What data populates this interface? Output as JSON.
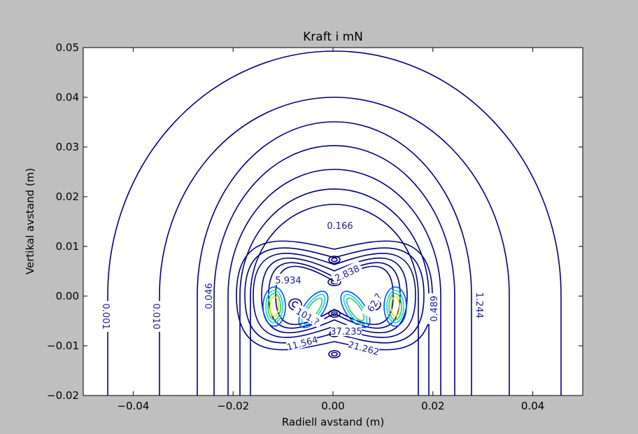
{
  "colors": {
    "figure_background": "#bfbfbf",
    "plot_background": "#ffffff",
    "outer_contour": "#000080",
    "mid_contour": "#0050ff",
    "inner_cyan": "#00d8ff",
    "inner_green": "#33cc55",
    "inner_yellow": "#e0e000"
  },
  "chart_data": {
    "type": "contour",
    "title": "Kraft i mN",
    "xlabel": "Radiell avstand (m)",
    "ylabel": "Vertikal avstand (m)",
    "xlim": [
      -0.05,
      0.05
    ],
    "ylim": [
      -0.02,
      0.05
    ],
    "x_ticks": [
      -0.04,
      -0.02,
      0.0,
      0.02,
      0.04
    ],
    "x_tick_labels": [
      "−0.04",
      "−0.02",
      "0.00",
      "0.02",
      "0.04"
    ],
    "y_ticks": [
      -0.02,
      -0.01,
      0.0,
      0.01,
      0.02,
      0.03,
      0.04,
      0.05
    ],
    "y_tick_labels": [
      "−0.02",
      "−0.01",
      "0.00",
      "0.01",
      "0.02",
      "0.03",
      "0.04",
      "0.05"
    ],
    "grid": false,
    "contour_levels_labeled": [
      "0.001",
      "0.010",
      "0.046",
      "0.166",
      "0.489",
      "1.244",
      "2.838",
      "5.934",
      "11.564",
      "21.262",
      "37.235",
      "62.?",
      "101.?"
    ],
    "source_points_x": [
      -0.0125,
      -0.008,
      0.0,
      0.008,
      0.0125
    ],
    "source_points_y": [
      0.0,
      0.0,
      -0.0035,
      0.0,
      0.0
    ]
  }
}
